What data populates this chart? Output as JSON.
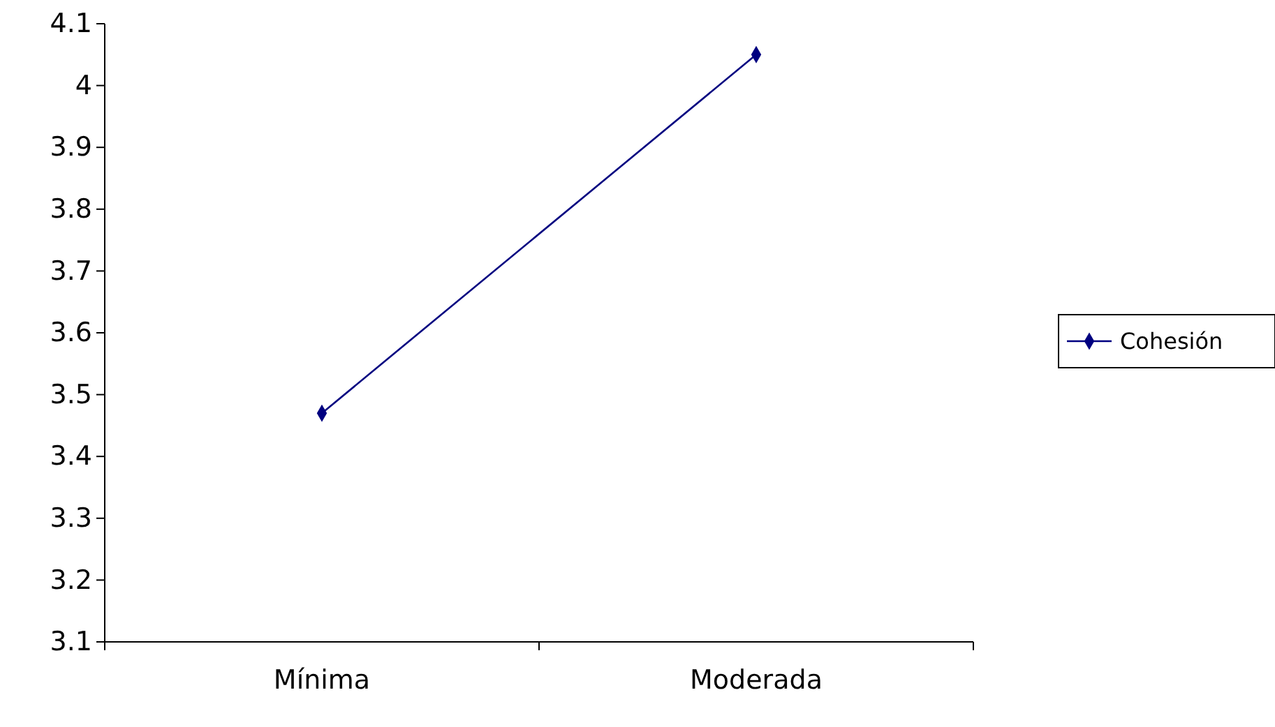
{
  "chart_data": {
    "type": "line",
    "categories": [
      "Mínima",
      "Moderada"
    ],
    "series": [
      {
        "name": "Cohesión",
        "color": "#000080",
        "values": [
          3.47,
          4.05
        ]
      }
    ],
    "ylim": [
      3.1,
      4.1
    ],
    "yticks": [
      3.1,
      3.2,
      3.3,
      3.4,
      3.5,
      3.6,
      3.7,
      3.8,
      3.9,
      4,
      4.1
    ],
    "grid": false,
    "legend": "right",
    "marker": "diamond",
    "line_style": "solid"
  }
}
